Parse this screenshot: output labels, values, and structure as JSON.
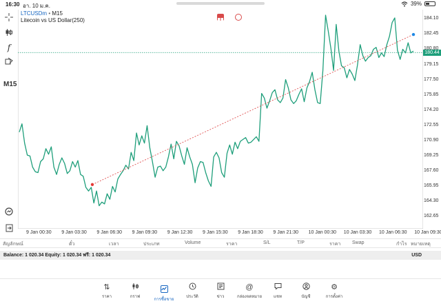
{
  "status": {
    "time": "16:30",
    "date": "อา. 10 ม.ค.",
    "battery": "39%"
  },
  "chart": {
    "symbol": "LTCUSDm",
    "separator": "•",
    "timeframe": "M15",
    "description": "Litecoin vs US Dollar(250)",
    "toolbar_timeframe": "M15",
    "current_price": "180.44",
    "y_ticks": [
      "184.10",
      "182.45",
      "180.80",
      "179.15",
      "177.50",
      "175.85",
      "174.20",
      "172.55",
      "170.90",
      "169.25",
      "167.60",
      "165.95",
      "164.30",
      "162.65"
    ],
    "x_ticks": [
      "9 Jan 00:30",
      "9 Jan 03:30",
      "9 Jan 06:30",
      "9 Jan 09:30",
      "9 Jan 12:30",
      "9 Jan 15:30",
      "9 Jan 18:30",
      "9 Jan 21:30",
      "10 Jan 00:30",
      "10 Jan 03:30",
      "10 Jan 06:30",
      "10 Jan 09:30"
    ],
    "colors": {
      "line": "#1d9e7a",
      "trend": "#e05050",
      "price_line": "#1d9e7a",
      "trend_start_marker": "#e53935",
      "trend_end_marker": "#1e88e5"
    }
  },
  "chart_data": {
    "type": "line",
    "title": "LTCUSDm • M15",
    "ylim": [
      162.0,
      185.0
    ],
    "series": [
      {
        "name": "LTCUSDm",
        "values": [
          171.8,
          172.7,
          170.6,
          169.3,
          169.2,
          168.0,
          167.5,
          167.4,
          168.6,
          168.9,
          170.0,
          169.4,
          170.2,
          168.0,
          167.2,
          168.3,
          169.0,
          168.4,
          167.3,
          167.6,
          168.6,
          168.0,
          168.7,
          167.2,
          167.0,
          165.8,
          165.4,
          165.8,
          164.1,
          165.4,
          163.8,
          164.2,
          164.0,
          165.1,
          164.5,
          165.9,
          165.3,
          166.7,
          167.2,
          167.6,
          168.2,
          167.8,
          169.6,
          168.7,
          171.7,
          170.4,
          171.4,
          170.6,
          172.5,
          170.1,
          168.6,
          166.9,
          168.0,
          168.1,
          167.6,
          168.0,
          169.1,
          170.5,
          168.9,
          170.8,
          170.3,
          169.2,
          168.3,
          170.1,
          169.1,
          168.3,
          166.3,
          167.9,
          168.6,
          168.5,
          167.4,
          166.5,
          165.9,
          169.1,
          169.6,
          169.0,
          167.4,
          166.9,
          169.5,
          170.4,
          169.4,
          170.7,
          170.0,
          170.8,
          171.0,
          171.2,
          170.6,
          170.7,
          171.0,
          171.3,
          170.8,
          176.0,
          175.5,
          174.4,
          175.2,
          176.1,
          176.4,
          175.3,
          175.0,
          175.5,
          177.5,
          176.6,
          175.3,
          174.9,
          175.2,
          175.9,
          176.5,
          175.1,
          176.6,
          177.3,
          178.3,
          176.4,
          175.0,
          174.9,
          178.5,
          184.5,
          182.8,
          180.9,
          178.5,
          183.5,
          180.6,
          179.0,
          178.8,
          177.7,
          178.6,
          178.1,
          177.4,
          179.1,
          181.3,
          180.1,
          179.5,
          179.9,
          180.1,
          180.8,
          181.0,
          179.9,
          180.4,
          180.0,
          181.3,
          182.2,
          183.7,
          184.2,
          180.7,
          179.7,
          180.8,
          180.4,
          181.5,
          180.4,
          180.6
        ]
      }
    ],
    "trend_line": {
      "from": 166.1,
      "to": 182.4
    }
  },
  "toolbar": {
    "crosshair_icon": "crosshair-icon",
    "objects_icon": "candles-icon",
    "indicator_icon": "function-icon",
    "shapes_icon": "shapes-icon",
    "zoom_icon": "zoom-icon",
    "export_icon": "export-icon"
  },
  "trade_table": {
    "headers": [
      "สัญลักษณ์",
      "ตั๋ว",
      "เวลา",
      "ประเภท",
      "Volume",
      "ราคา",
      "S/L",
      "T/P",
      "ราคา",
      "Swap",
      "กำไร",
      "หมายเหตุ"
    ]
  },
  "account": {
    "summary": "Balance: 1 020.34 Equity: 1 020.34 ฟรี: 1 020.34",
    "currency": "USD"
  },
  "nav": {
    "items": [
      {
        "label": "ราคา",
        "icon": "quotes-icon"
      },
      {
        "label": "กราฟ",
        "icon": "chart-icon"
      },
      {
        "label": "การซื้อขาย",
        "icon": "trade-icon"
      },
      {
        "label": "ประวัติ",
        "icon": "history-icon"
      },
      {
        "label": "ข่าว",
        "icon": "news-icon"
      },
      {
        "label": "กล่องจดหมาย",
        "icon": "mail-icon"
      },
      {
        "label": "แชท",
        "icon": "chat-icon"
      },
      {
        "label": "บัญชี",
        "icon": "account-icon"
      },
      {
        "label": "การตั้งค่า",
        "icon": "settings-icon"
      }
    ]
  }
}
